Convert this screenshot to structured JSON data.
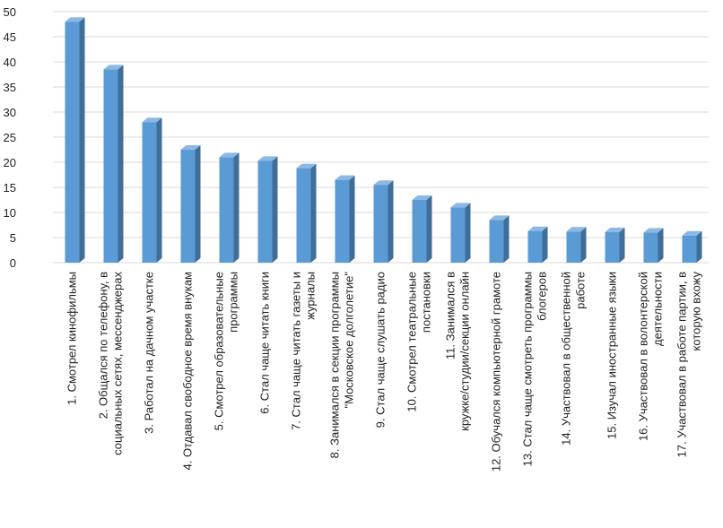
{
  "chart_data": {
    "type": "bar",
    "title": "",
    "xlabel": "",
    "ylabel": "",
    "ylim": [
      0,
      50
    ],
    "yticks": [
      0,
      5,
      10,
      15,
      20,
      25,
      30,
      35,
      40,
      45,
      50
    ],
    "grid": true,
    "legend": "none",
    "bar_style": "3d",
    "colors": {
      "bar_front": "#5B9BD5",
      "bar_side": "#3F6E99",
      "bar_top": "#8CB8E3",
      "grid": "#d9d9d9"
    },
    "categories": [
      [
        "1. Смотрел кинофильмы"
      ],
      [
        "2. Общался по телефону, в",
        "социальных сетях, мессенджерах"
      ],
      [
        "3. Работал на дачном участке"
      ],
      [
        "4. Отдавал свободное время внукам"
      ],
      [
        "5. Смотрел образовательные",
        "программы"
      ],
      [
        "6. Стал чаще читать книги"
      ],
      [
        "7. Стал чаще читать газеты и",
        "журналы"
      ],
      [
        "8. Занимался в секции программы",
        "\"Московское долголетие\""
      ],
      [
        "9. Стал чаще слушать радио"
      ],
      [
        "10. Смотрел театральные",
        "постановки"
      ],
      [
        "11. Занимался в",
        "кружке/студии/секции онлайн"
      ],
      [
        "12. Обучался компьютерной грамоте"
      ],
      [
        "13. Стал чаще смотреть программы",
        "блогеров"
      ],
      [
        "14. Участвовал в общественной",
        "работе"
      ],
      [
        "15. Изучал иностранные языки"
      ],
      [
        "16. Участвовал в волонтерской",
        "деятельности"
      ],
      [
        "17. Участвовал в работе партии, в",
        "которую вхожу"
      ]
    ],
    "values": [
      48,
      38.5,
      28,
      22.5,
      21,
      20.3,
      18.8,
      16.5,
      15.5,
      12.5,
      11,
      8.5,
      6.3,
      6.2,
      6.1,
      6,
      5.4
    ]
  }
}
